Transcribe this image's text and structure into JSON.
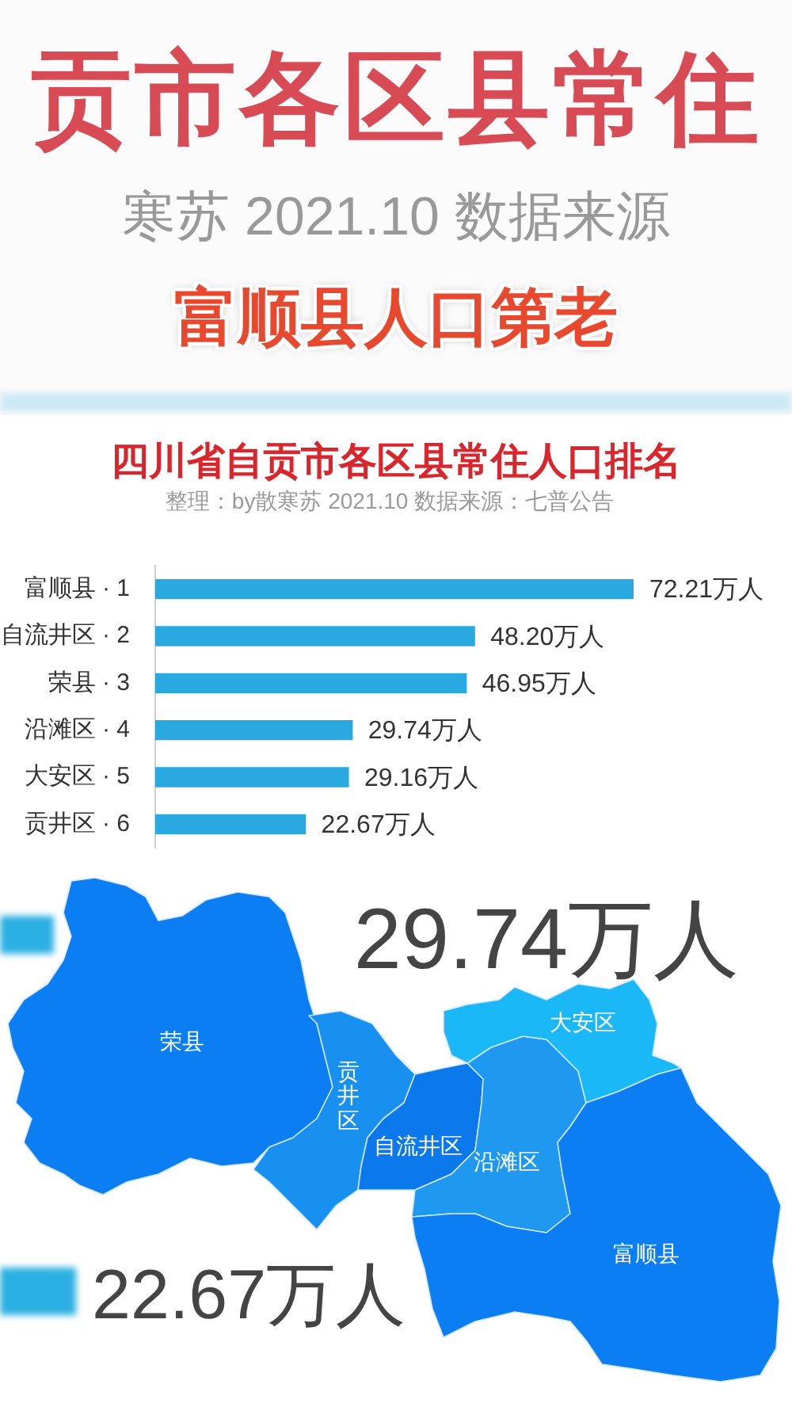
{
  "chart_data": [
    {
      "type": "other",
      "annotations": [
        "贡市各区县常住",
        "寒苏 2021.10 数据来源",
        "富顺县人口第老"
      ]
    },
    {
      "type": "bar",
      "orientation": "horizontal",
      "title": "四川省自贡市各区县常住人口排名",
      "subtitle": "整理：by散寒苏 2021.10 数据来源：七普公告",
      "categories": [
        "富顺县 · 1",
        "自流井区 · 2",
        "荣县 · 3",
        "沿滩区 · 4",
        "大安区 · 5",
        "贡井区 · 6"
      ],
      "values": [
        72.21,
        48.2,
        46.95,
        29.74,
        29.16,
        22.67
      ],
      "value_labels": [
        "72.21万人",
        "48.20万人",
        "46.95万人",
        "29.74万人",
        "29.16万人",
        "22.67万人"
      ],
      "color": "#2aa8e0"
    },
    {
      "type": "other",
      "annotations": [
        "荣县",
        "贡井区",
        "自流井区",
        "沿滩区",
        "大安区",
        "富顺县",
        "29.74万人",
        "22.67万人"
      ]
    }
  ]
}
